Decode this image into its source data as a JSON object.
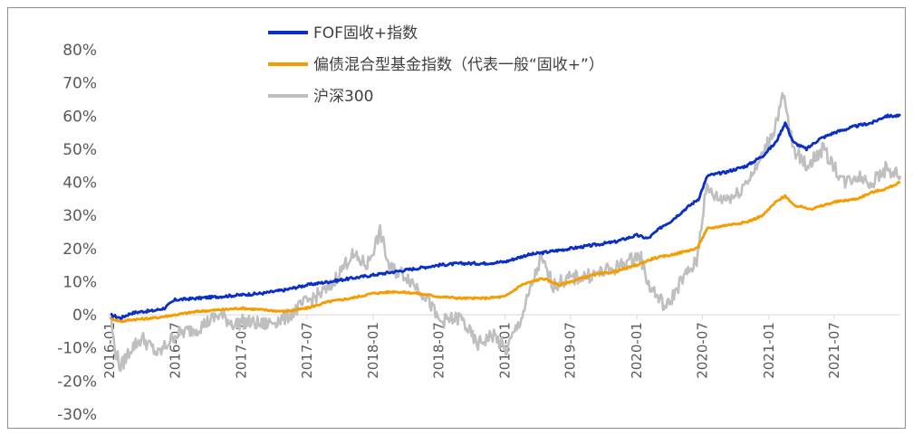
{
  "chart_data": {
    "type": "line",
    "title": "",
    "xlabel": "",
    "ylabel": "",
    "ylim": [
      -0.3,
      0.8
    ],
    "yticks": [
      "80%",
      "70%",
      "60%",
      "50%",
      "40%",
      "30%",
      "20%",
      "10%",
      "0%",
      "-10%",
      "-20%",
      "-30%"
    ],
    "xticks": [
      "2016-01",
      "2016-07",
      "2017-01",
      "2017-07",
      "2018-01",
      "2018-07",
      "2019-01",
      "2019-07",
      "2020-01",
      "2020-07",
      "2021-01",
      "2021-07"
    ],
    "grid": false,
    "legend_position": "top",
    "series": [
      {
        "name": "FOF固收+指数",
        "color": "#0a2fc6",
        "points": [
          [
            "2016-01-04",
            0.0
          ],
          [
            "2016-02-01",
            -0.01
          ],
          [
            "2016-03-01",
            0.005
          ],
          [
            "2016-04-01",
            0.01
          ],
          [
            "2016-05-01",
            0.012
          ],
          [
            "2016-06-01",
            0.02
          ],
          [
            "2016-07-01",
            0.045
          ],
          [
            "2016-09-01",
            0.05
          ],
          [
            "2016-11-01",
            0.055
          ],
          [
            "2017-01-01",
            0.06
          ],
          [
            "2017-03-01",
            0.065
          ],
          [
            "2017-05-01",
            0.075
          ],
          [
            "2017-07-01",
            0.09
          ],
          [
            "2017-09-01",
            0.1
          ],
          [
            "2017-11-01",
            0.11
          ],
          [
            "2018-01-01",
            0.12
          ],
          [
            "2018-03-01",
            0.13
          ],
          [
            "2018-05-01",
            0.14
          ],
          [
            "2018-07-01",
            0.15
          ],
          [
            "2018-09-01",
            0.155
          ],
          [
            "2018-11-01",
            0.155
          ],
          [
            "2019-01-01",
            0.16
          ],
          [
            "2019-03-01",
            0.18
          ],
          [
            "2019-05-01",
            0.19
          ],
          [
            "2019-07-01",
            0.2
          ],
          [
            "2019-09-01",
            0.21
          ],
          [
            "2019-11-01",
            0.22
          ],
          [
            "2020-01-01",
            0.24
          ],
          [
            "2020-02-01",
            0.23
          ],
          [
            "2020-03-15",
            0.27
          ],
          [
            "2020-04-01",
            0.28
          ],
          [
            "2020-05-15",
            0.32
          ],
          [
            "2020-06-20",
            0.35
          ],
          [
            "2020-07-15",
            0.42
          ],
          [
            "2020-09-01",
            0.43
          ],
          [
            "2020-11-01",
            0.45
          ],
          [
            "2020-12-15",
            0.48
          ],
          [
            "2021-01-20",
            0.52
          ],
          [
            "2021-02-15",
            0.58
          ],
          [
            "2021-03-10",
            0.52
          ],
          [
            "2021-04-15",
            0.5
          ],
          [
            "2021-05-20",
            0.53
          ],
          [
            "2021-07-01",
            0.55
          ],
          [
            "2021-09-01",
            0.57
          ],
          [
            "2021-10-15",
            0.58
          ],
          [
            "2021-11-20",
            0.6
          ],
          [
            "2021-12-31",
            0.6
          ]
        ]
      },
      {
        "name": "偏债混合型基金指数（代表一般“固收+”）",
        "color": "#f59c00",
        "points": [
          [
            "2016-01-04",
            -0.01
          ],
          [
            "2016-02-01",
            -0.02
          ],
          [
            "2016-03-01",
            -0.015
          ],
          [
            "2016-05-01",
            -0.01
          ],
          [
            "2016-07-01",
            0.0
          ],
          [
            "2016-09-01",
            0.01
          ],
          [
            "2016-11-01",
            0.015
          ],
          [
            "2017-01-01",
            0.02
          ],
          [
            "2017-03-01",
            0.015
          ],
          [
            "2017-05-01",
            0.01
          ],
          [
            "2017-07-01",
            0.02
          ],
          [
            "2017-09-01",
            0.04
          ],
          [
            "2017-11-01",
            0.05
          ],
          [
            "2018-01-01",
            0.065
          ],
          [
            "2018-03-01",
            0.07
          ],
          [
            "2018-05-01",
            0.065
          ],
          [
            "2018-07-01",
            0.055
          ],
          [
            "2018-09-01",
            0.05
          ],
          [
            "2018-11-01",
            0.05
          ],
          [
            "2019-01-01",
            0.055
          ],
          [
            "2019-02-15",
            0.09
          ],
          [
            "2019-04-15",
            0.11
          ],
          [
            "2019-06-01",
            0.09
          ],
          [
            "2019-07-01",
            0.1
          ],
          [
            "2019-09-01",
            0.12
          ],
          [
            "2019-11-01",
            0.13
          ],
          [
            "2020-01-01",
            0.15
          ],
          [
            "2020-02-15",
            0.17
          ],
          [
            "2020-04-01",
            0.18
          ],
          [
            "2020-06-15",
            0.2
          ],
          [
            "2020-07-15",
            0.26
          ],
          [
            "2020-09-01",
            0.27
          ],
          [
            "2020-11-01",
            0.28
          ],
          [
            "2020-12-15",
            0.3
          ],
          [
            "2021-01-20",
            0.34
          ],
          [
            "2021-02-15",
            0.36
          ],
          [
            "2021-03-10",
            0.33
          ],
          [
            "2021-05-01",
            0.32
          ],
          [
            "2021-07-01",
            0.34
          ],
          [
            "2021-09-01",
            0.35
          ],
          [
            "2021-10-15",
            0.37
          ],
          [
            "2021-11-20",
            0.38
          ],
          [
            "2021-12-31",
            0.4
          ]
        ]
      },
      {
        "name": "沪深300",
        "color": "#bfbfbf",
        "points": [
          [
            "2016-01-04",
            0.0
          ],
          [
            "2016-01-15",
            -0.1
          ],
          [
            "2016-02-01",
            -0.16
          ],
          [
            "2016-03-01",
            -0.1
          ],
          [
            "2016-04-01",
            -0.07
          ],
          [
            "2016-05-15",
            -0.12
          ],
          [
            "2016-07-01",
            -0.06
          ],
          [
            "2016-09-01",
            -0.04
          ],
          [
            "2016-11-01",
            0.0
          ],
          [
            "2016-12-15",
            -0.03
          ],
          [
            "2017-01-01",
            -0.02
          ],
          [
            "2017-03-01",
            -0.03
          ],
          [
            "2017-05-01",
            -0.01
          ],
          [
            "2017-07-01",
            0.04
          ],
          [
            "2017-09-01",
            0.08
          ],
          [
            "2017-11-01",
            0.18
          ],
          [
            "2017-12-15",
            0.15
          ],
          [
            "2018-01-20",
            0.25
          ],
          [
            "2018-02-15",
            0.14
          ],
          [
            "2018-04-01",
            0.12
          ],
          [
            "2018-06-01",
            0.05
          ],
          [
            "2018-07-01",
            -0.02
          ],
          [
            "2018-09-01",
            -0.01
          ],
          [
            "2018-10-15",
            -0.09
          ],
          [
            "2018-12-01",
            -0.06
          ],
          [
            "2019-01-03",
            -0.11
          ],
          [
            "2019-02-15",
            -0.01
          ],
          [
            "2019-04-10",
            0.17
          ],
          [
            "2019-05-15",
            0.09
          ],
          [
            "2019-07-01",
            0.11
          ],
          [
            "2019-09-01",
            0.12
          ],
          [
            "2019-11-01",
            0.14
          ],
          [
            "2020-01-10",
            0.18
          ],
          [
            "2020-02-03",
            0.09
          ],
          [
            "2020-03-23",
            0.02
          ],
          [
            "2020-05-01",
            0.1
          ],
          [
            "2020-06-15",
            0.16
          ],
          [
            "2020-07-10",
            0.38
          ],
          [
            "2020-08-15",
            0.35
          ],
          [
            "2020-10-01",
            0.36
          ],
          [
            "2020-12-01",
            0.45
          ],
          [
            "2021-01-15",
            0.56
          ],
          [
            "2021-02-10",
            0.66
          ],
          [
            "2021-03-10",
            0.5
          ],
          [
            "2021-04-15",
            0.45
          ],
          [
            "2021-06-01",
            0.5
          ],
          [
            "2021-07-28",
            0.4
          ],
          [
            "2021-09-01",
            0.42
          ],
          [
            "2021-10-15",
            0.4
          ],
          [
            "2021-11-20",
            0.44
          ],
          [
            "2021-12-31",
            0.42
          ]
        ]
      }
    ]
  }
}
